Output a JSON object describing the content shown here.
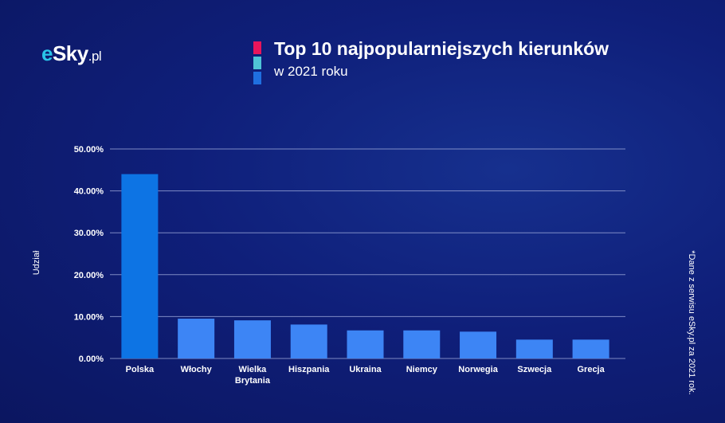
{
  "brand": {
    "logo_prefix": "e",
    "logo_main": "Sky",
    "logo_suffix": ".pl"
  },
  "header": {
    "title": "Top 10 najpopularniejszych kierunków",
    "subtitle": "w 2021 roku",
    "marker_colors": [
      "#e8155b",
      "#4fc4d6",
      "#1f6fe0"
    ]
  },
  "footnote": "*Dane z serwisu eSky.pl za 2021 rok.",
  "colors": {
    "primary_bar": "#0d74e4",
    "bar": "#3d85f5",
    "grid": "#9aa6d8",
    "text": "#ffffff"
  },
  "chart_data": {
    "type": "bar",
    "categories": [
      "Polska",
      "Włochy",
      "Wielka Brytania",
      "Hiszpania",
      "Ukraina",
      "Niemcy",
      "Norwegia",
      "Szwecja",
      "Grecja"
    ],
    "values": [
      44.0,
      9.5,
      9.1,
      8.1,
      6.7,
      6.7,
      6.4,
      4.5,
      4.5
    ],
    "ylabel": "Udział",
    "xlabel": "",
    "ylim": [
      0,
      50
    ],
    "yticks": [
      0,
      10,
      20,
      30,
      40,
      50
    ],
    "ytick_labels": [
      "0.00%",
      "10.00%",
      "20.00%",
      "30.00%",
      "40.00%",
      "50.00%"
    ],
    "grid": true,
    "legend": "none"
  }
}
